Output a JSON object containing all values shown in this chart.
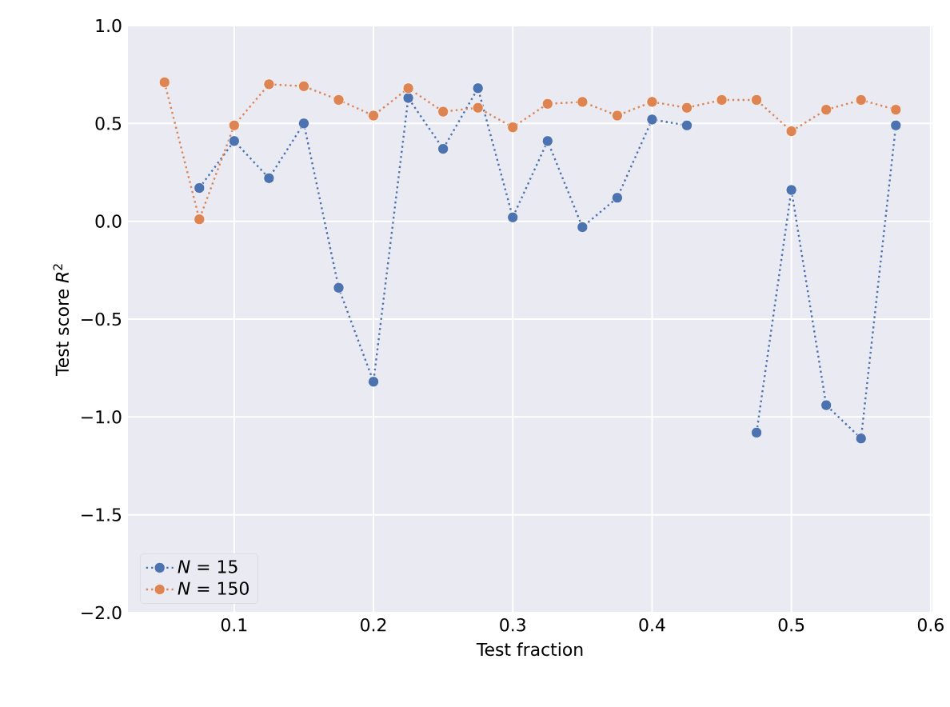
{
  "chart_data": {
    "type": "line",
    "xlabel": "Test fraction",
    "ylabel": "Test score *R*$^{2}$",
    "x": [
      0.05,
      0.075,
      0.1,
      0.125,
      0.15,
      0.175,
      0.2,
      0.225,
      0.25,
      0.275,
      0.3,
      0.325,
      0.35,
      0.375,
      0.4,
      0.425,
      0.45,
      0.475,
      0.5,
      0.525,
      0.55,
      0.575
    ],
    "series": [
      {
        "name": "*N* = 15",
        "color": "#4c72b0",
        "values": [
          null,
          0.17,
          0.41,
          0.22,
          0.5,
          -0.34,
          -0.82,
          0.63,
          0.37,
          0.68,
          0.02,
          0.41,
          -0.03,
          0.12,
          0.52,
          0.49,
          null,
          -1.08,
          0.16,
          -0.94,
          -1.11,
          0.49
        ]
      },
      {
        "name": "*N* = 150",
        "color": "#dd8452",
        "values": [
          0.71,
          0.01,
          0.49,
          0.7,
          0.69,
          0.62,
          0.54,
          0.68,
          0.56,
          0.58,
          0.48,
          0.6,
          0.61,
          0.54,
          0.61,
          0.58,
          0.62,
          0.62,
          0.46,
          0.57,
          0.62,
          0.57
        ]
      }
    ],
    "xlim": [
      0.02375,
      0.60125
    ],
    "ylim": [
      -2,
      1
    ],
    "xticks": [
      {
        "value": 0.1,
        "label": "0.1"
      },
      {
        "value": 0.2,
        "label": "0.2"
      },
      {
        "value": 0.3,
        "label": "0.3"
      },
      {
        "value": 0.4,
        "label": "0.4"
      },
      {
        "value": 0.5,
        "label": "0.5"
      },
      {
        "value": 0.6,
        "label": "0.6"
      }
    ],
    "yticks": [
      {
        "value": -2,
        "label": "−2.0"
      },
      {
        "value": -1.5,
        "label": "−1.5"
      },
      {
        "value": -1,
        "label": "−1.0"
      },
      {
        "value": -0.5,
        "label": "−0.5"
      },
      {
        "value": 0,
        "label": "0.0"
      },
      {
        "value": 0.5,
        "label": "0.5"
      },
      {
        "value": 1,
        "label": "1.0"
      }
    ],
    "grid": true,
    "legend": "bottom left",
    "marker": "circle",
    "line_style": "dotted"
  }
}
